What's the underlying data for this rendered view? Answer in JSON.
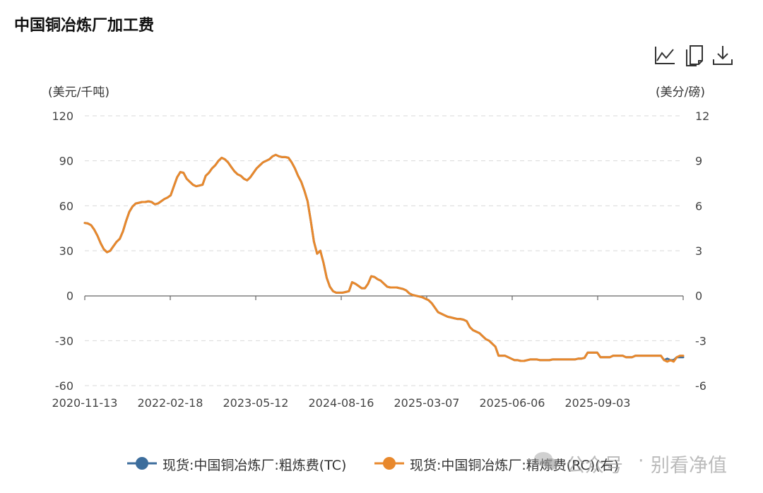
{
  "title": "中国铜冶炼厂加工费",
  "toolbar": {
    "line_icon": "line-chart-icon",
    "copy_icon": "copy-icon",
    "download_icon": "download-icon"
  },
  "watermark": {
    "text": "公众号",
    "separator": "·",
    "name": "别看净值"
  },
  "colors": {
    "tc": "#3c6d9c",
    "rc": "#e8882c",
    "grid": "#d9d9d9",
    "axis": "#666666"
  },
  "chart_data": {
    "type": "line",
    "title": "中国铜冶炼厂加工费",
    "y_left": {
      "label": "(美元/千吨)",
      "range": [
        -60,
        120
      ],
      "ticks": [
        "120",
        "90",
        "60",
        "30",
        "0",
        "-30",
        "-60"
      ]
    },
    "y_right": {
      "label": "(美分/磅)",
      "range": [
        -6,
        12
      ],
      "ticks": [
        "12",
        "9",
        "6",
        "3",
        "0",
        "-3",
        "-6"
      ]
    },
    "x_tick_labels": [
      "2020-11-13",
      "2022-02-18",
      "2023-05-12",
      "2024-08-16",
      "2025-03-07",
      "2025-06-06",
      "2025-09-03"
    ],
    "grid": true,
    "legend_position": "bottom",
    "series": [
      {
        "name": "现货:中国铜冶炼厂:粗炼费(TC)",
        "axis": "left",
        "values": [
          48.5,
          48.2,
          47,
          44,
          40,
          35,
          31,
          29,
          30,
          33,
          36,
          38,
          43,
          50,
          56,
          59.5,
          61.5,
          62,
          62.5,
          62.5,
          63,
          62.5,
          61,
          61.5,
          63,
          64.5,
          65.5,
          67,
          73,
          79,
          82.5,
          82,
          78,
          76,
          74,
          73,
          73.5,
          74,
          80,
          82,
          85,
          87,
          90,
          92,
          91,
          89,
          86,
          83,
          81,
          80,
          78,
          77,
          79,
          82,
          85,
          87,
          89,
          90,
          91,
          93,
          94,
          93,
          92.5,
          92.5,
          92,
          89,
          85,
          80,
          76,
          70,
          63,
          50,
          36,
          28,
          30,
          22,
          12,
          6,
          3,
          2,
          2,
          2,
          2.5,
          3,
          9,
          8,
          6.5,
          5,
          5,
          8,
          13,
          12.5,
          11,
          10,
          8,
          6,
          5.5,
          5.5,
          5.5,
          5,
          4.5,
          3.5,
          1.5,
          0.5,
          0,
          -0.5,
          -1,
          -2,
          -3,
          -5,
          -8,
          -11,
          -12,
          -13,
          -14,
          -14.5,
          -15,
          -15.5,
          -15.5,
          -16,
          -17,
          -21,
          -23,
          -24,
          -25,
          -27,
          -29,
          -30,
          -32,
          -34,
          -40,
          -40,
          -40,
          -41,
          -42,
          -43,
          -43,
          -43.5,
          -43.5,
          -43,
          -42.5,
          -42.5,
          -42.5,
          -43,
          -43,
          -43,
          -43,
          -42.5,
          -42.5,
          -42.5,
          -42.5,
          -42.5,
          -42.5,
          -42.5,
          -42.5,
          -42,
          -42,
          -41.5,
          -38,
          -38,
          -38,
          -38,
          -41,
          -41,
          -41,
          -41,
          -40,
          -40,
          -40,
          -40,
          -41,
          -41,
          -41,
          -40,
          -40,
          -40,
          -40,
          -40,
          -40,
          -40,
          -40,
          -40,
          -43,
          -42,
          -43,
          -43,
          -41,
          -41,
          -41
        ]
      },
      {
        "name": "现货:中国铜冶炼厂:精炼费(RC)(右)",
        "axis": "right",
        "values": [
          4.85,
          4.82,
          4.7,
          4.4,
          4,
          3.5,
          3.1,
          2.9,
          3,
          3.3,
          3.6,
          3.8,
          4.3,
          5,
          5.6,
          5.95,
          6.15,
          6.2,
          6.25,
          6.25,
          6.3,
          6.25,
          6.1,
          6.15,
          6.3,
          6.45,
          6.55,
          6.7,
          7.3,
          7.9,
          8.25,
          8.2,
          7.8,
          7.6,
          7.4,
          7.3,
          7.35,
          7.4,
          8,
          8.2,
          8.5,
          8.7,
          9,
          9.2,
          9.1,
          8.9,
          8.6,
          8.3,
          8.1,
          8,
          7.8,
          7.7,
          7.9,
          8.2,
          8.5,
          8.7,
          8.9,
          9,
          9.1,
          9.3,
          9.4,
          9.3,
          9.25,
          9.25,
          9.2,
          8.9,
          8.5,
          8,
          7.6,
          7,
          6.3,
          5,
          3.6,
          2.8,
          3,
          2.2,
          1.2,
          0.6,
          0.3,
          0.2,
          0.2,
          0.2,
          0.25,
          0.3,
          0.9,
          0.8,
          0.65,
          0.5,
          0.5,
          0.8,
          1.3,
          1.25,
          1.1,
          1,
          0.8,
          0.6,
          0.55,
          0.55,
          0.55,
          0.5,
          0.45,
          0.35,
          0.15,
          0.05,
          0,
          -0.05,
          -0.1,
          -0.2,
          -0.3,
          -0.5,
          -0.8,
          -1.1,
          -1.2,
          -1.3,
          -1.4,
          -1.45,
          -1.5,
          -1.55,
          -1.55,
          -1.6,
          -1.7,
          -2.1,
          -2.3,
          -2.4,
          -2.5,
          -2.7,
          -2.9,
          -3,
          -3.2,
          -3.4,
          -4,
          -4,
          -4,
          -4.1,
          -4.2,
          -4.3,
          -4.3,
          -4.35,
          -4.35,
          -4.3,
          -4.25,
          -4.25,
          -4.25,
          -4.3,
          -4.3,
          -4.3,
          -4.3,
          -4.25,
          -4.25,
          -4.25,
          -4.25,
          -4.25,
          -4.25,
          -4.25,
          -4.25,
          -4.2,
          -4.2,
          -4.15,
          -3.8,
          -3.8,
          -3.8,
          -3.8,
          -4.1,
          -4.1,
          -4.1,
          -4.1,
          -4,
          -4,
          -4,
          -4,
          -4.1,
          -4.1,
          -4.1,
          -4,
          -4,
          -4,
          -4,
          -4,
          -4,
          -4,
          -4,
          -4,
          -4.3,
          -4.4,
          -4.3,
          -4.4,
          -4.1,
          -4,
          -4
        ]
      }
    ]
  }
}
